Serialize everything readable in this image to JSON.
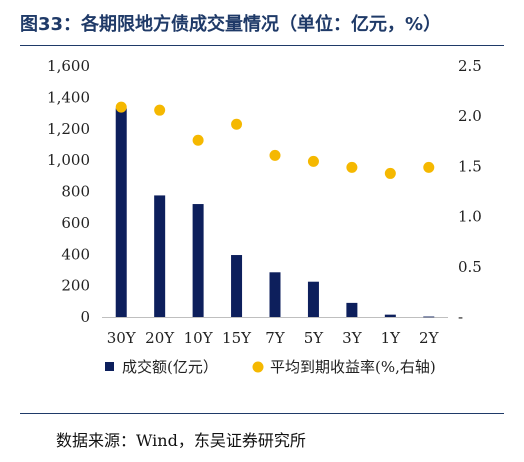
{
  "title": "图33：各期限地方债成交量情况（单位：亿元，%）",
  "source": "数据来源：Wind，东吴证券研究所",
  "colors": {
    "bar": "#0d1f5c",
    "dot": "#f5b800",
    "title": "#1f3a68",
    "axis": "#bfbfbf",
    "text": "#222222"
  },
  "chart_data": {
    "type": "bar",
    "categories": [
      "30Y",
      "20Y",
      "10Y",
      "15Y",
      "7Y",
      "5Y",
      "3Y",
      "1Y",
      "2Y"
    ],
    "series": [
      {
        "name": "成交额(亿元）",
        "type": "bar",
        "axis": "left",
        "values": [
          1330,
          775,
          720,
          395,
          285,
          225,
          90,
          15,
          3
        ]
      },
      {
        "name": "平均到期收益率(%,右轴)",
        "type": "scatter",
        "axis": "right",
        "values": [
          2.09,
          2.06,
          1.76,
          1.92,
          1.61,
          1.55,
          1.49,
          1.43,
          1.49
        ]
      }
    ],
    "y_left": {
      "min": 0,
      "max": 1600,
      "ticks": [
        "0",
        "200",
        "400",
        "600",
        "800",
        "1,000",
        "1,200",
        "1,400",
        "1,600"
      ]
    },
    "y_right": {
      "min": 0,
      "max": 2.5,
      "ticks": [
        "-",
        "0.5",
        "1.0",
        "1.5",
        "2.0",
        "2.5"
      ]
    },
    "legend": "bottom"
  }
}
